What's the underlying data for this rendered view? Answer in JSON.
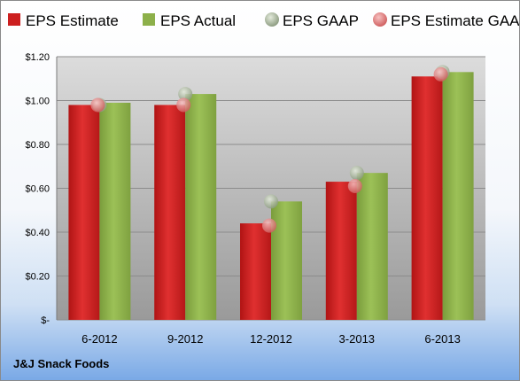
{
  "company": "J&J Snack Foods",
  "chart_data": {
    "type": "bar",
    "categories": [
      "6-2012",
      "9-2012",
      "12-2012",
      "3-2013",
      "6-2013"
    ],
    "series": [
      {
        "name": "EPS Estimate",
        "kind": "bar",
        "color": "#cc1f1f",
        "values": [
          0.98,
          0.98,
          0.44,
          0.63,
          1.11
        ]
      },
      {
        "name": "EPS Actual",
        "kind": "bar",
        "color": "#8db04a",
        "values": [
          0.99,
          1.03,
          0.54,
          0.67,
          1.13
        ]
      },
      {
        "name": "EPS GAAP",
        "kind": "marker",
        "color": "#a9b89a",
        "values": [
          0.98,
          1.03,
          0.54,
          0.67,
          1.13
        ]
      },
      {
        "name": "EPS Estimate GAAP",
        "kind": "marker",
        "color": "#e88c8c",
        "values": [
          0.98,
          0.98,
          0.43,
          0.61,
          1.12
        ]
      }
    ],
    "yticks": [
      "$-",
      "$0.20",
      "$0.40",
      "$0.60",
      "$0.80",
      "$1.00",
      "$1.20"
    ],
    "ylim": [
      0,
      1.2
    ],
    "legend_position": "top",
    "grid": true
  }
}
